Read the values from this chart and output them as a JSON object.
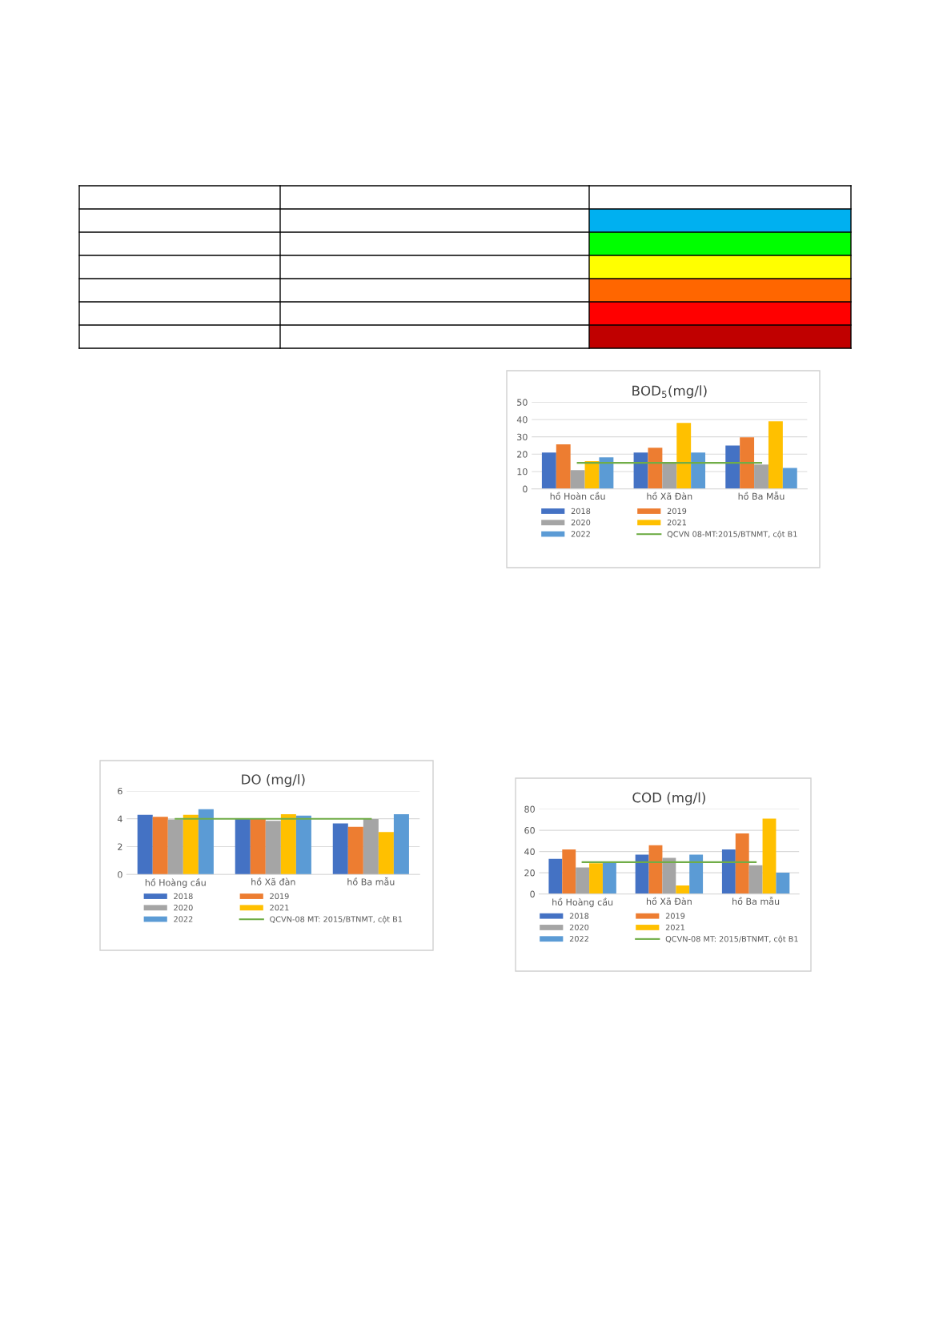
{
  "chart_data": [
    {
      "type": "bar",
      "title": "BOD$_{5}$(mg/l)",
      "categories": [
        "hồ Hoàn cầu",
        "hồ Xã Đàn",
        "hồ Ba Mẫu"
      ],
      "ylim": [
        0,
        50
      ],
      "yticks": [
        0,
        10,
        20,
        30,
        40,
        50
      ],
      "grid": "y",
      "legend": "bottom",
      "series": [
        {
          "name": "2018",
          "color": "#4472c4",
          "values": [
            21,
            21,
            25
          ]
        },
        {
          "name": "2019",
          "color": "#ed7d31",
          "values": [
            25.7,
            23.7,
            29.7
          ]
        },
        {
          "name": "2020",
          "color": "#a5a5a5",
          "values": [
            10.8,
            15,
            14
          ]
        },
        {
          "name": "2021",
          "color": "#ffc000",
          "values": [
            16,
            38,
            39
          ]
        },
        {
          "name": "2022",
          "color": "#5b9bd5",
          "values": [
            18.2,
            21,
            12
          ]
        },
        {
          "name": "QCVN 08-MT:2015/BTNMT, cột B1",
          "type": "line",
          "color": "#70ad47",
          "values": [
            15,
            15,
            15
          ]
        }
      ]
    },
    {
      "type": "bar",
      "title": "DO (mg/l)",
      "categories": [
        "hồ Hoàng cầu",
        "hồ Xã đàn",
        "hồ Ba mẫu"
      ],
      "ylim": [
        0,
        6
      ],
      "yticks": [
        0,
        2,
        4,
        6
      ],
      "grid": "y",
      "legend": "bottom",
      "series": [
        {
          "name": "2018",
          "color": "#4472c4",
          "values": [
            4.28,
            4.0,
            3.66
          ]
        },
        {
          "name": "2019",
          "color": "#ed7d31",
          "values": [
            4.14,
            4.0,
            3.42
          ]
        },
        {
          "name": "2020",
          "color": "#a5a5a5",
          "values": [
            3.96,
            3.85,
            3.98
          ]
        },
        {
          "name": "2021",
          "color": "#ffc000",
          "values": [
            4.28,
            4.33,
            3.04
          ]
        },
        {
          "name": "2022",
          "color": "#5b9bd5",
          "values": [
            4.68,
            4.22,
            4.33
          ]
        },
        {
          "name": "QCVN-08 MT: 2015/BTNMT, cột B1",
          "type": "line",
          "color": "#70ad47",
          "values": [
            4,
            4,
            4
          ]
        }
      ]
    },
    {
      "type": "bar",
      "title": "COD (mg/l)",
      "categories": [
        "hồ Hoàng cầu",
        "hồ Xã Đàn",
        "hồ Ba mẫu"
      ],
      "ylim": [
        0,
        80
      ],
      "yticks": [
        0,
        20,
        40,
        60,
        80
      ],
      "grid": "y",
      "legend": "bottom",
      "series": [
        {
          "name": "2018",
          "color": "#4472c4",
          "values": [
            33,
            37,
            42
          ]
        },
        {
          "name": "2019",
          "color": "#ed7d31",
          "values": [
            42,
            46,
            57
          ]
        },
        {
          "name": "2020",
          "color": "#a5a5a5",
          "values": [
            25,
            34,
            27
          ]
        },
        {
          "name": "2021",
          "color": "#ffc000",
          "values": [
            29,
            8,
            71
          ]
        },
        {
          "name": "2022",
          "color": "#5b9bd5",
          "values": [
            30,
            37,
            20
          ]
        },
        {
          "name": "QCVN-08 MT: 2015/BTNMT, cột B1",
          "type": "line",
          "color": "#70ad47",
          "values": [
            30,
            30,
            30
          ]
        }
      ]
    }
  ]
}
